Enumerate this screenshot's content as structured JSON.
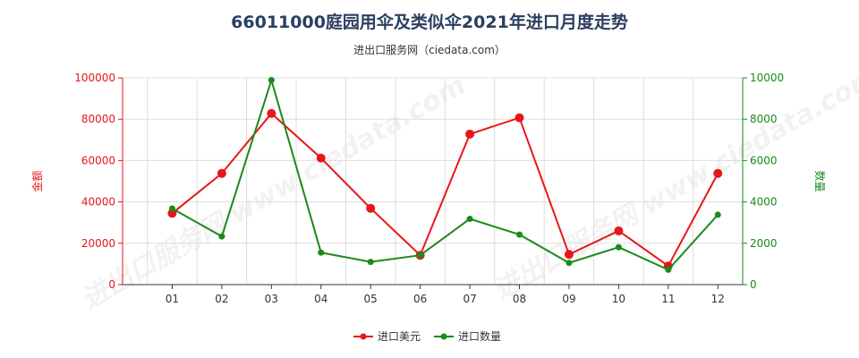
{
  "title": "66011000庭园用伞及类似伞2021年进口月度走势",
  "subtitle": "进出口服务网（ciedata.com）",
  "watermark": "进出口服务网 www.ciedata.com",
  "colors": {
    "left": "#e8161a",
    "right": "#1a8a1a",
    "grid": "#dddddd",
    "axis": "#333333"
  },
  "chart_data": {
    "type": "line",
    "categories": [
      "01",
      "02",
      "03",
      "04",
      "05",
      "06",
      "07",
      "08",
      "09",
      "10",
      "11",
      "12"
    ],
    "ylabel": "金额",
    "y2label": "数量",
    "ylim": [
      0,
      100000
    ],
    "y2lim": [
      0,
      10000
    ],
    "yticks": [
      "0",
      "20000",
      "40000",
      "60000",
      "80000",
      "100000"
    ],
    "y2ticks": [
      "0",
      "2000",
      "4000",
      "6000",
      "8000",
      "10000"
    ],
    "grid": true,
    "legend_position": "bottom",
    "series": [
      {
        "name": "进口美元",
        "axis": "left",
        "color": "#e8161a",
        "values": [
          34500,
          53800,
          82800,
          61200,
          36900,
          14200,
          72800,
          80700,
          14600,
          26000,
          9000,
          53800
        ]
      },
      {
        "name": "进口数量",
        "axis": "right",
        "color": "#1a8a1a",
        "values": [
          3680,
          2330,
          9890,
          1550,
          1100,
          1420,
          3180,
          2420,
          1050,
          1810,
          720,
          3380
        ]
      }
    ]
  }
}
